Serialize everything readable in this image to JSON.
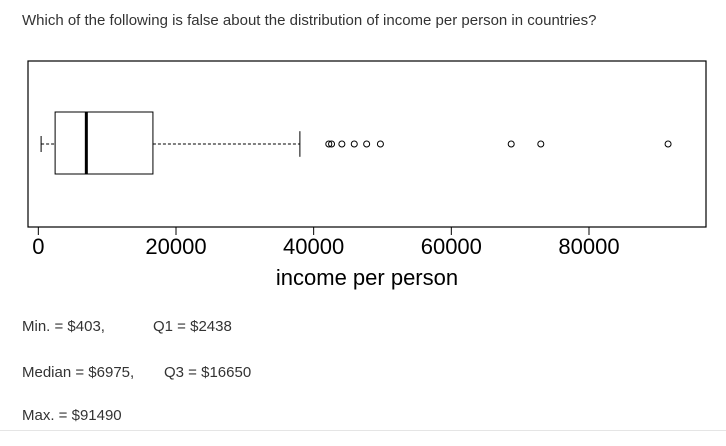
{
  "question": "Which of the following is false about the distribution of income per person in countries?",
  "chart_data": {
    "type": "boxplot",
    "orientation": "horizontal",
    "xlabel": "income per person",
    "xlim": [
      -1500,
      97000
    ],
    "x_ticks": [
      0,
      20000,
      40000,
      60000,
      80000
    ],
    "x_tick_labels": [
      "0",
      "20000",
      "40000",
      "60000",
      "80000"
    ],
    "whisker_low": 403,
    "q1": 2438,
    "median": 6975,
    "q3": 16650,
    "whisker_high": 38000,
    "outliers": [
      42200,
      42600,
      44100,
      45900,
      47700,
      49700,
      68700,
      73000,
      91490
    ],
    "grid": false
  },
  "stats": {
    "min": "Min. = $403,",
    "q1": "Q1 = $2438",
    "median": "Median = $6975,",
    "q3": "Q3 = $16650",
    "max": "Max. = $91490"
  }
}
